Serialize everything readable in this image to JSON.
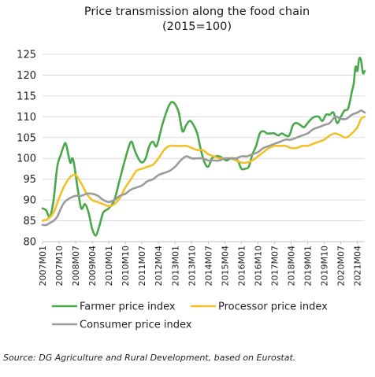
{
  "source_note": "Source: DG Agriculture and Rural Development, based on Eurostat.",
  "chart_data": {
    "type": "line",
    "title_lines": [
      "Price transmission along the food chain",
      "(2015=100)"
    ],
    "ylim": [
      80,
      125
    ],
    "yticks": [
      80,
      85,
      90,
      95,
      100,
      105,
      110,
      115,
      120,
      125
    ],
    "xstart": [
      2007,
      1
    ],
    "xend": [
      2021,
      8
    ],
    "xtick_labels": [
      "2007M01",
      "2007M10",
      "2008M07",
      "2009M04",
      "2010M01",
      "2010M10",
      "2011M07",
      "2012M04",
      "2013M01",
      "2013M10",
      "2014M07",
      "2015M04",
      "2016M01",
      "2016M10",
      "2017M07",
      "2018M04",
      "2019M01",
      "2019M10",
      "2020M07",
      "2021M04"
    ],
    "grid": "horizontal",
    "legend_position": "bottom",
    "series": [
      {
        "name": "Farmer price index",
        "color": "#4aa84a",
        "points": [
          [
            "2007M01",
            88
          ],
          [
            "2007M03",
            87.5
          ],
          [
            "2007M05",
            86
          ],
          [
            "2007M07",
            90
          ],
          [
            "2007M09",
            98
          ],
          [
            "2007M11",
            101
          ],
          [
            "2008M01",
            103.5
          ],
          [
            "2008M02",
            103
          ],
          [
            "2008M04",
            99
          ],
          [
            "2008M05",
            100
          ],
          [
            "2008M06",
            99
          ],
          [
            "2008M08",
            93
          ],
          [
            "2008M10",
            88
          ],
          [
            "2008M12",
            89
          ],
          [
            "2009M02",
            87
          ],
          [
            "2009M04",
            83
          ],
          [
            "2009M06",
            81.5
          ],
          [
            "2009M08",
            84
          ],
          [
            "2009M10",
            87
          ],
          [
            "2010M01",
            88
          ],
          [
            "2010M04",
            90
          ],
          [
            "2010M07",
            95
          ],
          [
            "2010M10",
            100
          ],
          [
            "2011M01",
            104
          ],
          [
            "2011M03",
            102
          ],
          [
            "2011M05",
            100
          ],
          [
            "2011M07",
            99
          ],
          [
            "2011M09",
            100
          ],
          [
            "2011M11",
            103
          ],
          [
            "2012M01",
            104
          ],
          [
            "2012M03",
            103
          ],
          [
            "2012M06",
            108
          ],
          [
            "2012M09",
            112
          ],
          [
            "2012M11",
            113.5
          ],
          [
            "2013M01",
            113
          ],
          [
            "2013M03",
            111
          ],
          [
            "2013M05",
            106.5
          ],
          [
            "2013M07",
            108
          ],
          [
            "2013M09",
            109
          ],
          [
            "2013M11",
            108
          ],
          [
            "2014M01",
            106
          ],
          [
            "2014M03",
            102
          ],
          [
            "2014M05",
            99
          ],
          [
            "2014M07",
            98
          ],
          [
            "2014M09",
            100
          ],
          [
            "2014M11",
            100.5
          ],
          [
            "2015M01",
            100.5
          ],
          [
            "2015M03",
            100
          ],
          [
            "2015M05",
            99.5
          ],
          [
            "2015M07",
            100
          ],
          [
            "2015M09",
            100
          ],
          [
            "2015M11",
            99.5
          ],
          [
            "2016M01",
            97.5
          ],
          [
            "2016M03",
            97.5
          ],
          [
            "2016M05",
            98
          ],
          [
            "2016M07",
            101
          ],
          [
            "2016M09",
            103
          ],
          [
            "2016M11",
            106
          ],
          [
            "2017M01",
            106.5
          ],
          [
            "2017M03",
            106
          ],
          [
            "2017M05",
            106
          ],
          [
            "2017M07",
            106
          ],
          [
            "2017M09",
            105.5
          ],
          [
            "2017M11",
            106
          ],
          [
            "2018M01",
            105.5
          ],
          [
            "2018M03",
            105.5
          ],
          [
            "2018M05",
            108
          ],
          [
            "2018M07",
            108.5
          ],
          [
            "2018M09",
            108
          ],
          [
            "2018M11",
            107.5
          ],
          [
            "2019M01",
            108.5
          ],
          [
            "2019M03",
            109.5
          ],
          [
            "2019M05",
            110
          ],
          [
            "2019M07",
            110
          ],
          [
            "2019M09",
            109
          ],
          [
            "2019M11",
            110.5
          ],
          [
            "2020M01",
            110.5
          ],
          [
            "2020M03",
            111
          ],
          [
            "2020M05",
            108.5
          ],
          [
            "2020M07",
            110
          ],
          [
            "2020M09",
            111.5
          ],
          [
            "2020M11",
            112
          ],
          [
            "2021M01",
            116
          ],
          [
            "2021M02",
            118
          ],
          [
            "2021M03",
            122
          ],
          [
            "2021M04",
            121
          ],
          [
            "2021M05",
            124
          ],
          [
            "2021M06",
            123.5
          ],
          [
            "2021M07",
            120.5
          ],
          [
            "2021M08",
            121
          ]
        ]
      },
      {
        "name": "Processor price index",
        "color": "#f2c029",
        "points": [
          [
            "2007M01",
            85
          ],
          [
            "2007M04",
            85.5
          ],
          [
            "2007M07",
            87
          ],
          [
            "2007M10",
            90.5
          ],
          [
            "2008M01",
            93.5
          ],
          [
            "2008M04",
            95.5
          ],
          [
            "2008M07",
            96
          ],
          [
            "2008M10",
            94
          ],
          [
            "2009M01",
            91.5
          ],
          [
            "2009M04",
            90
          ],
          [
            "2009M07",
            89.5
          ],
          [
            "2009M10",
            89
          ],
          [
            "2010M01",
            88.5
          ],
          [
            "2010M04",
            89
          ],
          [
            "2010M07",
            90.5
          ],
          [
            "2010M10",
            93
          ],
          [
            "2011M01",
            95
          ],
          [
            "2011M04",
            97
          ],
          [
            "2011M07",
            97.5
          ],
          [
            "2011M10",
            98
          ],
          [
            "2012M01",
            98.5
          ],
          [
            "2012M04",
            100
          ],
          [
            "2012M07",
            102
          ],
          [
            "2012M10",
            103
          ],
          [
            "2013M01",
            103
          ],
          [
            "2013M04",
            103
          ],
          [
            "2013M07",
            103
          ],
          [
            "2013M10",
            102.5
          ],
          [
            "2014M01",
            102
          ],
          [
            "2014M04",
            102
          ],
          [
            "2014M07",
            101
          ],
          [
            "2014M10",
            100.5
          ],
          [
            "2015M01",
            100
          ],
          [
            "2015M04",
            100
          ],
          [
            "2015M07",
            100
          ],
          [
            "2015M10",
            99.5
          ],
          [
            "2016M01",
            99
          ],
          [
            "2016M04",
            99
          ],
          [
            "2016M07",
            99.5
          ],
          [
            "2016M10",
            100.5
          ],
          [
            "2017M01",
            101.5
          ],
          [
            "2017M04",
            102.5
          ],
          [
            "2017M07",
            103
          ],
          [
            "2017M10",
            103
          ],
          [
            "2018M01",
            103
          ],
          [
            "2018M04",
            102.5
          ],
          [
            "2018M07",
            102.5
          ],
          [
            "2018M10",
            103
          ],
          [
            "2019M01",
            103
          ],
          [
            "2019M04",
            103.5
          ],
          [
            "2019M07",
            104
          ],
          [
            "2019M10",
            104.5
          ],
          [
            "2020M01",
            105.5
          ],
          [
            "2020M04",
            106
          ],
          [
            "2020M07",
            105.5
          ],
          [
            "2020M10",
            105
          ],
          [
            "2021M01",
            106
          ],
          [
            "2021M04",
            107.5
          ],
          [
            "2021M06",
            109.5
          ],
          [
            "2021M08",
            110
          ]
        ]
      },
      {
        "name": "Consumer price index",
        "color": "#9b9b9b",
        "points": [
          [
            "2007M01",
            84
          ],
          [
            "2007M03",
            84
          ],
          [
            "2007M05",
            84.5
          ],
          [
            "2007M07",
            85
          ],
          [
            "2007M09",
            86
          ],
          [
            "2007M11",
            88
          ],
          [
            "2008M01",
            89.5
          ],
          [
            "2008M04",
            90.5
          ],
          [
            "2008M07",
            91
          ],
          [
            "2008M10",
            91
          ],
          [
            "2009M01",
            91.5
          ],
          [
            "2009M04",
            91.5
          ],
          [
            "2009M07",
            91
          ],
          [
            "2009M10",
            90
          ],
          [
            "2010M01",
            89.5
          ],
          [
            "2010M04",
            90
          ],
          [
            "2010M07",
            91
          ],
          [
            "2010M10",
            91.5
          ],
          [
            "2011M01",
            92.5
          ],
          [
            "2011M04",
            93
          ],
          [
            "2011M07",
            93.5
          ],
          [
            "2011M10",
            94.5
          ],
          [
            "2012M01",
            95
          ],
          [
            "2012M04",
            96
          ],
          [
            "2012M07",
            96.5
          ],
          [
            "2012M10",
            97
          ],
          [
            "2013M01",
            98
          ],
          [
            "2013M04",
            99.5
          ],
          [
            "2013M07",
            100.5
          ],
          [
            "2013M10",
            100
          ],
          [
            "2014M01",
            100
          ],
          [
            "2014M04",
            100
          ],
          [
            "2014M07",
            99.5
          ],
          [
            "2014M10",
            99.5
          ],
          [
            "2015M01",
            99.5
          ],
          [
            "2015M04",
            100
          ],
          [
            "2015M07",
            100
          ],
          [
            "2015M10",
            100
          ],
          [
            "2016M01",
            100.5
          ],
          [
            "2016M04",
            100.5
          ],
          [
            "2016M07",
            101
          ],
          [
            "2016M10",
            101.5
          ],
          [
            "2017M01",
            102.5
          ],
          [
            "2017M04",
            103
          ],
          [
            "2017M07",
            103.5
          ],
          [
            "2017M10",
            104
          ],
          [
            "2018M01",
            104.5
          ],
          [
            "2018M04",
            104.5
          ],
          [
            "2018M07",
            105
          ],
          [
            "2018M10",
            105.5
          ],
          [
            "2019M01",
            106
          ],
          [
            "2019M04",
            107
          ],
          [
            "2019M07",
            107.5
          ],
          [
            "2019M10",
            108
          ],
          [
            "2020M01",
            108.5
          ],
          [
            "2020M04",
            110
          ],
          [
            "2020M07",
            109.5
          ],
          [
            "2020M10",
            109.5
          ],
          [
            "2021M01",
            110.5
          ],
          [
            "2021M04",
            111
          ],
          [
            "2021M06",
            111.5
          ],
          [
            "2021M08",
            111
          ]
        ]
      }
    ]
  }
}
